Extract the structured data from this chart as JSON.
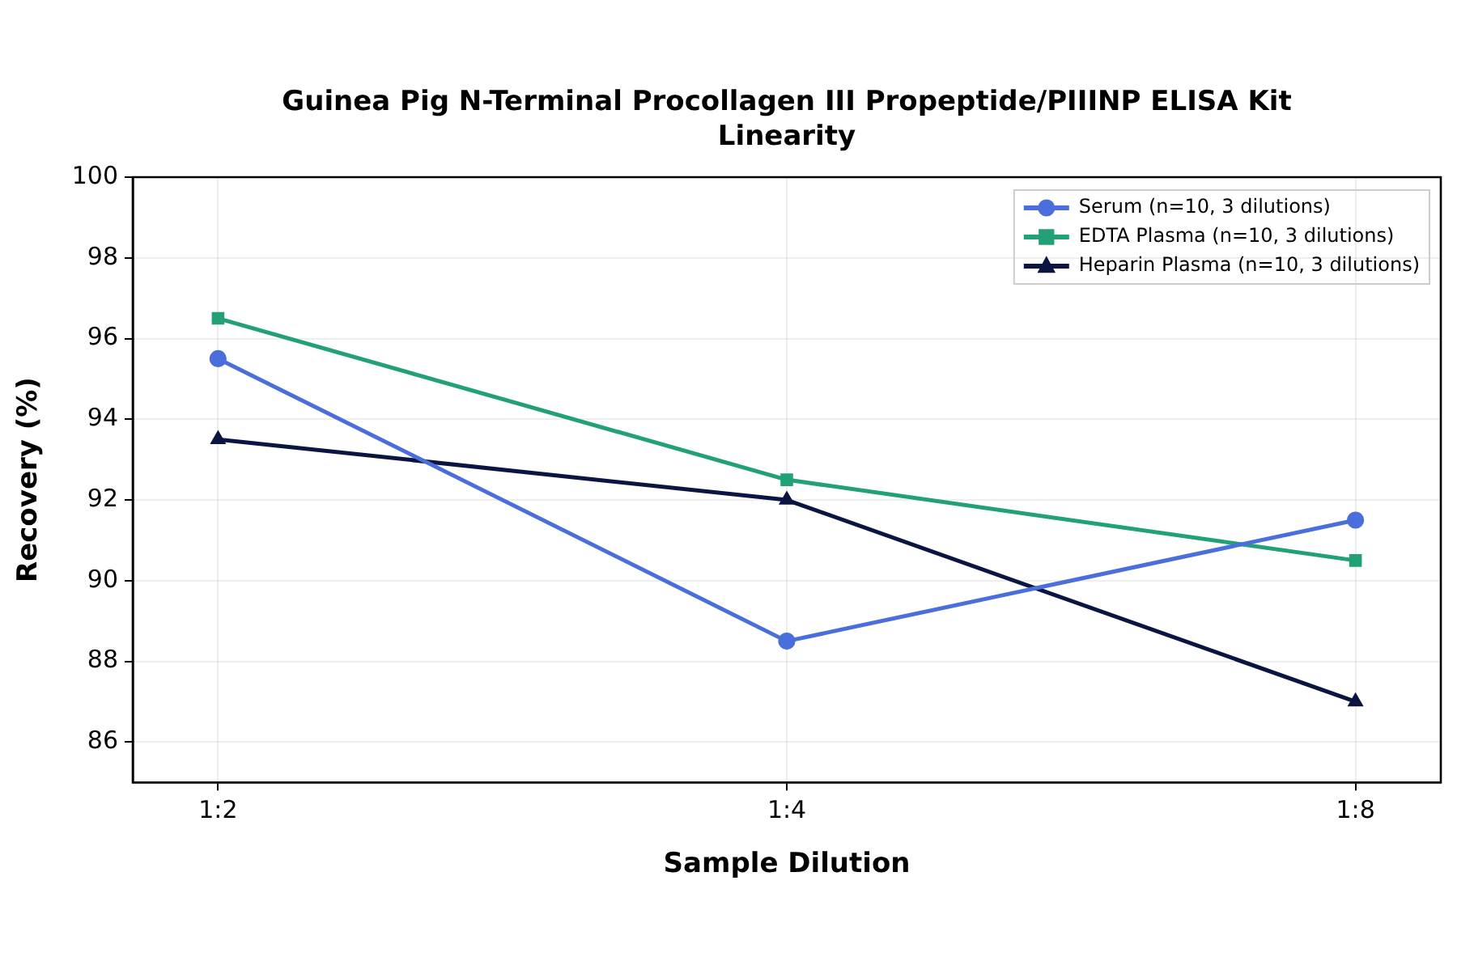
{
  "chart_data": {
    "type": "line",
    "title": "Guinea Pig N-Terminal Procollagen III Propeptide/PIIINP ELISA Kit\nLinearity",
    "xlabel": "Sample Dilution",
    "ylabel": "Recovery (%)",
    "categories": [
      "1:2",
      "1:4",
      "1:8"
    ],
    "series": [
      {
        "name": "Serum (n=10, 3 dilutions)",
        "color": "#4a6fdc",
        "marker": "circle",
        "values": [
          95.5,
          88.5,
          91.5
        ]
      },
      {
        "name": "EDTA Plasma (n=10, 3 dilutions)",
        "color": "#22a077",
        "marker": "square",
        "values": [
          96.5,
          92.5,
          90.5
        ]
      },
      {
        "name": "Heparin Plasma (n=10, 3 dilutions)",
        "color": "#0b1541",
        "marker": "triangle",
        "values": [
          93.5,
          92,
          87
        ]
      }
    ],
    "ylim": [
      85,
      100
    ],
    "yticks": [
      86,
      88,
      90,
      92,
      94,
      96,
      98,
      100
    ],
    "grid": true,
    "legend": "top right"
  }
}
